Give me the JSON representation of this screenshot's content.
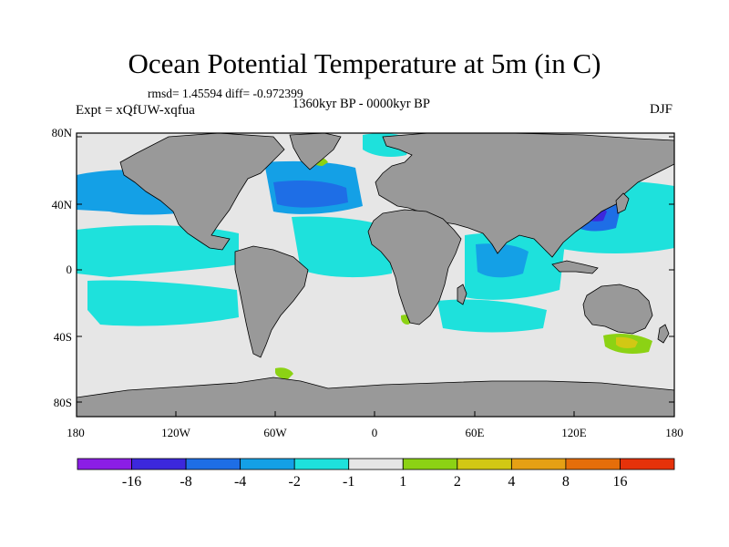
{
  "title": "Ocean Potential Temperature at 5m (in C)",
  "stats": "rmsd= 1.45594 diff= -0.972399",
  "period": "1360kyr BP - 0000kyr BP",
  "expt": "Expt = xQfUW-xqfua",
  "season": "DJF",
  "lat_ticks": [
    "80N",
    "40N",
    "0",
    "40S",
    "80S"
  ],
  "lon_ticks": [
    "180",
    "120W",
    "60W",
    "0",
    "60E",
    "120E",
    "180"
  ],
  "colorbar": {
    "colors": [
      "#8b1ee6",
      "#3c28dc",
      "#1e6ee6",
      "#14a0e6",
      "#1ee1dc",
      "#e6e6e6",
      "#8cd214",
      "#d2c814",
      "#e6a014",
      "#e66e0a",
      "#e6320a"
    ],
    "labels": [
      "-16",
      "-8",
      "-4",
      "-2",
      "-1",
      "1",
      "2",
      "4",
      "8",
      "16"
    ]
  },
  "colors": {
    "land": "#999999",
    "ocean_neutral": "#e6e6e6",
    "frame": "#000000"
  }
}
